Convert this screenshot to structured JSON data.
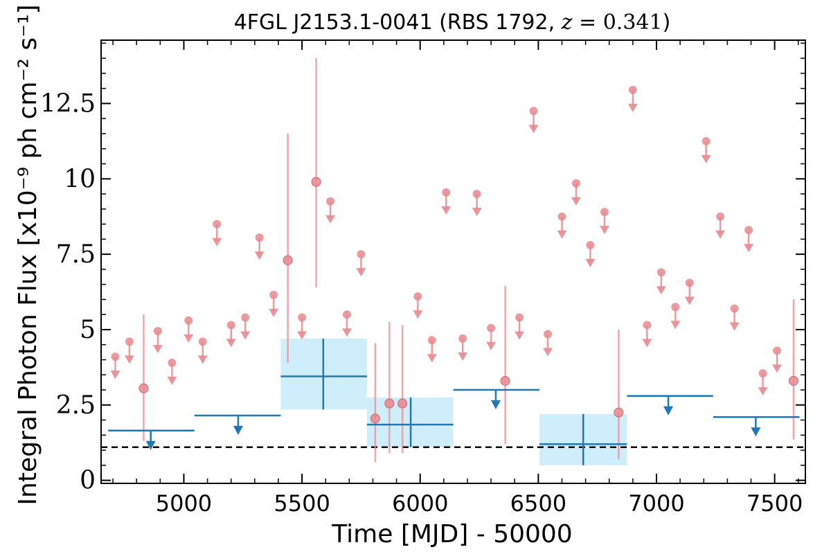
{
  "chart_data": {
    "type": "scatter",
    "title": "4FGL J2153.1-0041 (RBS 1792, z = 0.341)",
    "title_parts": {
      "prefix": "4FGL J2153.1-0041 (RBS 1792, ",
      "z_var": "z",
      "z_rest": " = 0.341",
      "suffix": ")"
    },
    "xlabel": "Time [MJD] - 50000",
    "ylabel": "Integral Photon Flux [x10⁻⁹ ph cm⁻² s⁻¹]",
    "xlim": [
      4650,
      7630
    ],
    "ylim": [
      -0.1,
      14.6
    ],
    "x_ticks": [
      5000,
      5500,
      6000,
      6500,
      7000,
      7500
    ],
    "x_tick_labels": [
      "5000",
      "5500",
      "6000",
      "6500",
      "7000",
      "7500"
    ],
    "y_ticks": [
      0,
      2.5,
      5,
      7.5,
      10,
      12.5
    ],
    "y_tick_labels": [
      "0",
      "2.5",
      "5",
      "7.5",
      "10",
      "12.5"
    ],
    "reference_line": {
      "y": 1.1,
      "style": "dashed",
      "color": "#000000"
    },
    "colors": {
      "short_bins": "#e88a8f",
      "long_bins": "#1f77b4",
      "long_bins_band": "#cfeefc"
    },
    "short_bins": {
      "detections": [
        {
          "x": 4830,
          "y": 3.05,
          "ylo": 1.3,
          "yhi": 5.5
        },
        {
          "x": 5440,
          "y": 7.3,
          "ylo": 3.9,
          "yhi": 11.5
        },
        {
          "x": 5560,
          "y": 9.9,
          "ylo": 6.4,
          "yhi": 14.0
        },
        {
          "x": 5810,
          "y": 2.05,
          "ylo": 0.6,
          "yhi": 4.55
        },
        {
          "x": 5870,
          "y": 2.55,
          "ylo": 0.9,
          "yhi": 5.25
        },
        {
          "x": 5925,
          "y": 2.55,
          "ylo": 0.9,
          "yhi": 5.15
        },
        {
          "x": 6360,
          "y": 3.3,
          "ylo": 1.2,
          "yhi": 6.45
        },
        {
          "x": 6840,
          "y": 2.25,
          "ylo": 0.7,
          "yhi": 5.0
        },
        {
          "x": 7580,
          "y": 3.3,
          "ylo": 1.35,
          "yhi": 6.0
        }
      ],
      "upper_limits": [
        {
          "x": 4710,
          "y": 4.1
        },
        {
          "x": 4770,
          "y": 4.6
        },
        {
          "x": 4890,
          "y": 4.95
        },
        {
          "x": 4950,
          "y": 3.9
        },
        {
          "x": 5020,
          "y": 5.3
        },
        {
          "x": 5080,
          "y": 4.6
        },
        {
          "x": 5140,
          "y": 8.5
        },
        {
          "x": 5200,
          "y": 5.15
        },
        {
          "x": 5260,
          "y": 5.4
        },
        {
          "x": 5320,
          "y": 8.05
        },
        {
          "x": 5380,
          "y": 6.15
        },
        {
          "x": 5500,
          "y": 5.4
        },
        {
          "x": 5620,
          "y": 9.25
        },
        {
          "x": 5690,
          "y": 5.5
        },
        {
          "x": 5750,
          "y": 7.5
        },
        {
          "x": 5990,
          "y": 6.1
        },
        {
          "x": 6050,
          "y": 4.65
        },
        {
          "x": 6110,
          "y": 9.55
        },
        {
          "x": 6180,
          "y": 4.7
        },
        {
          "x": 6240,
          "y": 9.5
        },
        {
          "x": 6300,
          "y": 5.05
        },
        {
          "x": 6420,
          "y": 5.4
        },
        {
          "x": 6480,
          "y": 12.25
        },
        {
          "x": 6540,
          "y": 4.85
        },
        {
          "x": 6600,
          "y": 8.75
        },
        {
          "x": 6660,
          "y": 9.85
        },
        {
          "x": 6720,
          "y": 7.8
        },
        {
          "x": 6780,
          "y": 8.9
        },
        {
          "x": 6900,
          "y": 12.95
        },
        {
          "x": 6960,
          "y": 5.15
        },
        {
          "x": 7020,
          "y": 6.9
        },
        {
          "x": 7080,
          "y": 5.75
        },
        {
          "x": 7140,
          "y": 6.55
        },
        {
          "x": 7210,
          "y": 11.25
        },
        {
          "x": 7270,
          "y": 8.75
        },
        {
          "x": 7330,
          "y": 5.7
        },
        {
          "x": 7390,
          "y": 8.3
        },
        {
          "x": 7450,
          "y": 3.55
        },
        {
          "x": 7510,
          "y": 4.3
        }
      ]
    },
    "long_bins": {
      "detections": [
        {
          "x": 5590,
          "xlo": 5410,
          "xhi": 5775,
          "y": 3.45,
          "ylo": 2.35,
          "yhi": 4.7
        },
        {
          "x": 5960,
          "xlo": 5775,
          "xhi": 6140,
          "y": 1.85,
          "ylo": 1.1,
          "yhi": 2.75
        },
        {
          "x": 6690,
          "xlo": 6505,
          "xhi": 6875,
          "y": 1.2,
          "ylo": 0.5,
          "yhi": 2.2
        }
      ],
      "upper_limits": [
        {
          "x": 4860,
          "xlo": 4680,
          "xhi": 5045,
          "y": 1.65
        },
        {
          "x": 5230,
          "xlo": 5045,
          "xhi": 5410,
          "y": 2.15
        },
        {
          "x": 6320,
          "xlo": 6140,
          "xhi": 6505,
          "y": 3.0
        },
        {
          "x": 7050,
          "xlo": 6875,
          "xhi": 7240,
          "y": 2.8
        },
        {
          "x": 7420,
          "xlo": 7240,
          "xhi": 7605,
          "y": 2.1
        }
      ]
    }
  }
}
